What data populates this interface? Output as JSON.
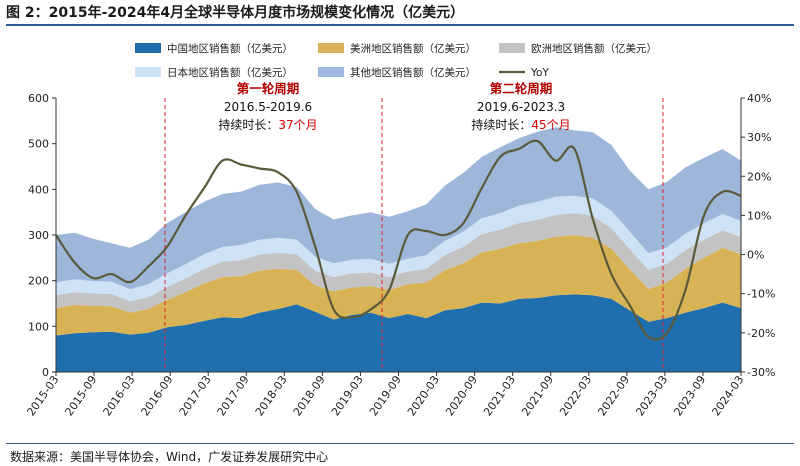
{
  "header": {
    "title": "图 2：2015年-2024年4月全球半导体月度市场规模变化情况（亿美元）"
  },
  "footer": {
    "source": "数据来源：美国半导体协会，Wind，广发证券发展研究中心"
  },
  "colors": {
    "china": "#1f6eae",
    "americas": "#d7b356",
    "europe": "#c3c3c3",
    "japan": "#cfe2f5",
    "other": "#9fb6db",
    "yoy": "#5b5a3a",
    "divider": "#e0202b"
  },
  "chart_data": {
    "type": "area",
    "title": "2015年-2024年4月全球半导体月度市场规模变化情况（亿美元）",
    "x_tick_labels": [
      "2015-03",
      "2015-09",
      "2016-03",
      "2016-09",
      "2017-03",
      "2017-09",
      "2018-03",
      "2018-09",
      "2019-03",
      "2019-09",
      "2020-03",
      "2020-09",
      "2021-03",
      "2021-09",
      "2022-03",
      "2022-09",
      "2023-03",
      "2023-09",
      "2024-03"
    ],
    "y_left_ticks": [
      "0",
      "100",
      "200",
      "300",
      "400",
      "500",
      "600"
    ],
    "y_right_ticks": [
      "40%",
      "30%",
      "20%",
      "10%",
      "0%",
      "-10%",
      "-20%",
      "-30%"
    ],
    "ylim_left": [
      0,
      600
    ],
    "ylim_right": [
      -30,
      40
    ],
    "stacked_series": [
      {
        "name": "中国地区销售额（亿美元）",
        "key": "china",
        "values": [
          80,
          85,
          87,
          88,
          82,
          86,
          98,
          103,
          112,
          120,
          118,
          130,
          138,
          148,
          132,
          115,
          125,
          130,
          118,
          127,
          118,
          135,
          140,
          152,
          150,
          160,
          162,
          168,
          170,
          168,
          160,
          135,
          110,
          118,
          130,
          140,
          152,
          140
        ]
      },
      {
        "name": "美洲地区销售额（亿美元）",
        "key": "americas",
        "values": [
          60,
          62,
          58,
          56,
          48,
          52,
          60,
          72,
          82,
          88,
          92,
          92,
          88,
          76,
          58,
          62,
          60,
          58,
          62,
          65,
          78,
          88,
          98,
          110,
          120,
          122,
          125,
          128,
          130,
          126,
          110,
          90,
          72,
          78,
          96,
          110,
          120,
          118
        ]
      },
      {
        "name": "欧洲地区销售额（亿美元）",
        "key": "europe",
        "values": [
          28,
          28,
          27,
          27,
          25,
          26,
          28,
          30,
          32,
          34,
          35,
          35,
          35,
          34,
          32,
          31,
          31,
          30,
          28,
          28,
          30,
          33,
          36,
          40,
          42,
          44,
          46,
          48,
          48,
          48,
          45,
          44,
          42,
          41,
          41,
          40,
          38,
          38
        ]
      },
      {
        "name": "日本地区销售额（亿美元）",
        "key": "japan",
        "values": [
          28,
          28,
          27,
          27,
          26,
          28,
          30,
          31,
          32,
          32,
          33,
          33,
          33,
          32,
          31,
          30,
          30,
          30,
          29,
          28,
          30,
          31,
          33,
          35,
          36,
          38,
          40,
          40,
          38,
          38,
          38,
          38,
          36,
          36,
          36,
          36,
          36,
          35
        ]
      },
      {
        "name": "其他地区销售额（亿美元）",
        "key": "other",
        "values": [
          104,
          102,
          93,
          84,
          91,
          98,
          110,
          114,
          115,
          116,
          117,
          120,
          121,
          115,
          104,
          96,
          97,
          102,
          103,
          104,
          111,
          121,
          129,
          134,
          144,
          148,
          153,
          152,
          143,
          145,
          144,
          134,
          140,
          143,
          145,
          143,
          142,
          132
        ]
      }
    ],
    "line_series": {
      "name": "YoY",
      "axis": "right",
      "unit": "%",
      "values": [
        5,
        -2,
        -6,
        -5,
        -7,
        -3,
        2,
        10,
        17,
        24,
        23,
        22,
        21,
        16,
        2,
        -14,
        -16,
        -14,
        -9,
        5,
        6,
        5,
        8,
        17,
        25,
        27,
        29,
        24,
        27,
        9,
        -5,
        -13,
        -21,
        -20,
        -9,
        10,
        16,
        15
      ]
    },
    "period_markers": [
      {
        "label": "第一轮周期",
        "range": "2016.5-2019.6",
        "duration_label": "持续时长：",
        "duration": "37个月"
      },
      {
        "label": "第二轮周期",
        "range": "2019.6-2023.3",
        "duration_label": "持续时长：",
        "duration": "45个月"
      }
    ],
    "legend": [
      "中国地区销售额（亿美元）",
      "美洲地区销售额（亿美元）",
      "欧洲地区销售额（亿美元）",
      "日本地区销售额（亿美元）",
      "其他地区销售额（亿美元）",
      "YoY"
    ]
  }
}
